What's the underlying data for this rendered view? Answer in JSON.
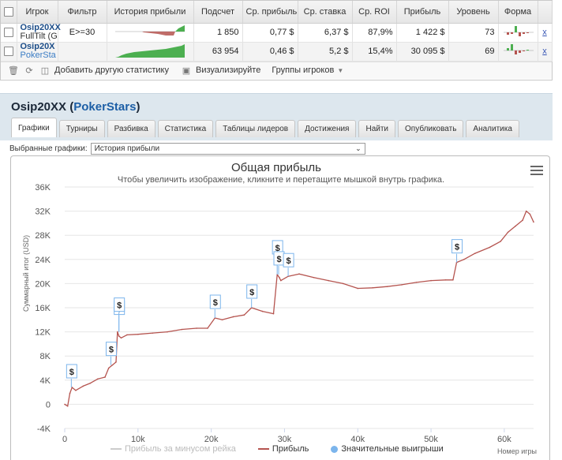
{
  "table": {
    "headers": [
      "Игрок",
      "Фильтр",
      "История прибыли",
      "Подсчет",
      "Ср. прибыль",
      "Ср. ставка",
      "Ср. ROI",
      "Прибыль",
      "Уровень",
      "Форма"
    ],
    "rows": [
      {
        "nick": "Osip20XX",
        "site": "FullTilt (G",
        "filter": "E>=30",
        "count": "1 850",
        "avg_profit": "0,77 $",
        "avg_stake": "6,37 $",
        "avg_roi": "87,9%",
        "profit": "1 422 $",
        "level": "73",
        "remove": "x"
      },
      {
        "nick": "Osip20X",
        "site": "PokerSta",
        "filter": "",
        "count": "63 954",
        "avg_profit": "0,46 $",
        "avg_stake": "5,2 $",
        "avg_roi": "15,4%",
        "profit": "30 095 $",
        "level": "69",
        "remove": "x"
      }
    ]
  },
  "toolbar": {
    "add_stats": "Добавить другую статистику",
    "visualize": "Визуализируйте",
    "player_groups": "Группы игроков"
  },
  "player": {
    "name": "Osip20XX",
    "open_paren": "(",
    "site": "PokerStars",
    "close_paren": ")"
  },
  "tabs": [
    "Графики",
    "Турниры",
    "Разбивка",
    "Статистика",
    "Таблицы лидеров",
    "Достижения",
    "Найти",
    "Опубликовать",
    "Аналитика"
  ],
  "chart_selector": {
    "label": "Выбранные графики:",
    "value": "История прибыли"
  },
  "colors": {
    "profit_line": "#b5544f",
    "rake_line": "#cccccc",
    "big_win_dot": "#7cb5ec",
    "axis_text": "#555555",
    "tab_bg": "#dde7ee",
    "link_blue": "#1d5fa6"
  },
  "icons": [
    "trash-icon",
    "refresh-icon",
    "add-stats-icon",
    "visualize-icon",
    "chevron-down-icon",
    "menu-icon",
    "dollar-flag-icon"
  ],
  "chart_data": {
    "type": "line",
    "title": "Общая прибыль",
    "subtitle": "Чтобы увеличить изображение, кликните и перетащите мышкой внутрь графика.",
    "xlabel": "Номер игры",
    "ylabel": "Суммарный итог (USD)",
    "xlim": [
      0,
      64000
    ],
    "ylim": [
      -4000,
      36000
    ],
    "x_ticks": [
      0,
      10000,
      20000,
      30000,
      40000,
      50000,
      60000
    ],
    "x_tick_labels": [
      "0",
      "10k",
      "20k",
      "30k",
      "40k",
      "50k",
      "60k"
    ],
    "y_ticks": [
      -4000,
      0,
      4000,
      8000,
      12000,
      16000,
      20000,
      24000,
      28000,
      32000,
      36000
    ],
    "y_tick_labels": [
      "-4K",
      "0",
      "4K",
      "8K",
      "12K",
      "16K",
      "20K",
      "24K",
      "28K",
      "32K",
      "36K"
    ],
    "legend": [
      {
        "name": "Прибыль за минусом рейка",
        "color": "#cccccc",
        "marker": "line"
      },
      {
        "name": "Прибыль",
        "color": "#b5544f",
        "marker": "line"
      },
      {
        "name": "Значительные выигрыши",
        "color": "#7cb5ec",
        "marker": "dot"
      }
    ],
    "series": [
      {
        "name": "Прибыль",
        "x": [
          0,
          400,
          700,
          1000,
          1500,
          2500,
          3500,
          4500,
          5500,
          6000,
          6500,
          7000,
          7200,
          7400,
          7700,
          8500,
          10000,
          12000,
          14000,
          16000,
          18000,
          19500,
          20500,
          21500,
          23000,
          24500,
          25500,
          27000,
          28500,
          29000,
          29300,
          29500,
          30500,
          32000,
          34000,
          36000,
          38000,
          40000,
          42000,
          44000,
          46000,
          48000,
          50000,
          52000,
          53000,
          53500,
          54500,
          56000,
          58000,
          59500,
          60500,
          61500,
          62500,
          63000,
          63500,
          64000
        ],
        "y": [
          0,
          -300,
          1800,
          2800,
          2300,
          3000,
          3500,
          4200,
          4500,
          6000,
          6500,
          7000,
          12000,
          11300,
          11000,
          11500,
          11600,
          11800,
          12000,
          12400,
          12600,
          12600,
          14300,
          14000,
          14500,
          14800,
          16000,
          15400,
          15000,
          21500,
          21000,
          20500,
          21200,
          21600,
          21000,
          20500,
          20000,
          19200,
          19300,
          19500,
          19800,
          20200,
          20500,
          20600,
          20600,
          23500,
          24000,
          25000,
          26000,
          27000,
          28500,
          29500,
          30500,
          32000,
          31500,
          30200
        ]
      }
    ],
    "big_wins": [
      {
        "x": 900,
        "y": 2800,
        "label": "$"
      },
      {
        "x": 6300,
        "y": 6500,
        "label": "$"
      },
      {
        "x": 7400,
        "y": 12000,
        "label": "$"
      },
      {
        "x": 7400,
        "y": 12000,
        "label": "$"
      },
      {
        "x": 20500,
        "y": 14300,
        "label": "$"
      },
      {
        "x": 25500,
        "y": 16000,
        "label": "$"
      },
      {
        "x": 29000,
        "y": 21500,
        "label": "$"
      },
      {
        "x": 29200,
        "y": 21500,
        "label": "$"
      },
      {
        "x": 30500,
        "y": 21200,
        "label": "$"
      },
      {
        "x": 53500,
        "y": 23500,
        "label": "$"
      }
    ]
  }
}
